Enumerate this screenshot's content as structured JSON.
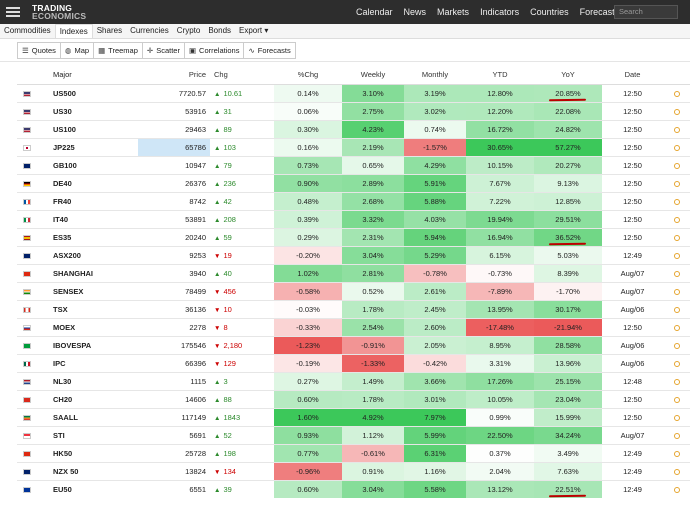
{
  "nav": {
    "logo_line1": "TRADING",
    "logo_line2": "ECONOMICS",
    "items": [
      "Calendar",
      "News",
      "Markets",
      "Indicators",
      "Countries",
      "Forecasts"
    ],
    "search_placeholder": "Search"
  },
  "subnav": {
    "items": [
      "Commodities",
      "Indexes",
      "Shares",
      "Currencies",
      "Crypto",
      "Bonds",
      "Export ▾"
    ],
    "active": "Indexes"
  },
  "toolbar": {
    "buttons": [
      {
        "label": "Quotes",
        "icon": "list-icon"
      },
      {
        "label": "Map",
        "icon": "globe-icon"
      },
      {
        "label": "Treemap",
        "icon": "grid-icon"
      },
      {
        "label": "Scatter",
        "icon": "crosshair-icon"
      },
      {
        "label": "Correlations",
        "icon": "table-icon"
      },
      {
        "label": "Forecasts",
        "icon": "trend-icon"
      }
    ]
  },
  "table": {
    "headers": [
      "Major",
      "Price",
      "Chg",
      "%Chg",
      "Weekly",
      "Monthly",
      "YTD",
      "YoY",
      "Date"
    ],
    "rows": [
      {
        "flag": "us",
        "name": "US500",
        "price": "7720.57",
        "dir": "up",
        "chg": "10.61",
        "pct": "0.14%",
        "wk": "3.10%",
        "mo": "3.19%",
        "ytd": "12.80%",
        "yoy": "20.85%",
        "date": "12:50",
        "yoy_mark": true
      },
      {
        "flag": "us",
        "name": "US30",
        "price": "53916",
        "dir": "up",
        "chg": "31",
        "pct": "0.06%",
        "wk": "2.75%",
        "mo": "3.02%",
        "ytd": "12.20%",
        "yoy": "22.08%",
        "date": "12:50"
      },
      {
        "flag": "us",
        "name": "US100",
        "price": "29463",
        "dir": "up",
        "chg": "89",
        "pct": "0.30%",
        "wk": "4.23%",
        "mo": "0.74%",
        "ytd": "16.72%",
        "yoy": "24.82%",
        "date": "12:50"
      },
      {
        "flag": "jp",
        "name": "JP225",
        "price": "65786",
        "dir": "up",
        "chg": "103",
        "pct": "0.16%",
        "wk": "2.19%",
        "mo": "-1.57%",
        "ytd": "30.65%",
        "yoy": "57.27%",
        "date": "12:50",
        "price_hl": true
      },
      {
        "flag": "gb",
        "name": "GB100",
        "price": "10947",
        "dir": "up",
        "chg": "79",
        "pct": "0.73%",
        "wk": "0.65%",
        "mo": "4.29%",
        "ytd": "10.15%",
        "yoy": "20.27%",
        "date": "12:50"
      },
      {
        "flag": "de",
        "name": "DE40",
        "price": "26376",
        "dir": "up",
        "chg": "236",
        "pct": "0.90%",
        "wk": "2.89%",
        "mo": "5.91%",
        "ytd": "7.67%",
        "yoy": "9.13%",
        "date": "12:50"
      },
      {
        "flag": "fr",
        "name": "FR40",
        "price": "8742",
        "dir": "up",
        "chg": "42",
        "pct": "0.48%",
        "wk": "2.68%",
        "mo": "5.88%",
        "ytd": "7.22%",
        "yoy": "12.85%",
        "date": "12:50"
      },
      {
        "flag": "it",
        "name": "IT40",
        "price": "53891",
        "dir": "up",
        "chg": "208",
        "pct": "0.39%",
        "wk": "3.32%",
        "mo": "4.03%",
        "ytd": "19.94%",
        "yoy": "29.51%",
        "date": "12:50"
      },
      {
        "flag": "es",
        "name": "ES35",
        "price": "20240",
        "dir": "up",
        "chg": "59",
        "pct": "0.29%",
        "wk": "2.31%",
        "mo": "5.94%",
        "ytd": "16.94%",
        "yoy": "36.52%",
        "date": "12:50",
        "yoy_mark": true
      },
      {
        "flag": "au",
        "name": "ASX200",
        "price": "9253",
        "dir": "down",
        "chg": "19",
        "pct": "-0.20%",
        "wk": "3.04%",
        "mo": "5.29%",
        "ytd": "6.15%",
        "yoy": "5.03%",
        "date": "12:49"
      },
      {
        "flag": "cn",
        "name": "SHANGHAI",
        "price": "3940",
        "dir": "up",
        "chg": "40",
        "pct": "1.02%",
        "wk": "2.81%",
        "mo": "-0.78%",
        "ytd": "-0.73%",
        "yoy": "8.39%",
        "date": "Aug/07"
      },
      {
        "flag": "in",
        "name": "SENSEX",
        "price": "78499",
        "dir": "down",
        "chg": "456",
        "pct": "-0.58%",
        "wk": "0.52%",
        "mo": "2.61%",
        "ytd": "-7.89%",
        "yoy": "-1.70%",
        "date": "Aug/07"
      },
      {
        "flag": "ca",
        "name": "TSX",
        "price": "36136",
        "dir": "down",
        "chg": "10",
        "pct": "-0.03%",
        "wk": "1.78%",
        "mo": "2.45%",
        "ytd": "13.95%",
        "yoy": "30.17%",
        "date": "Aug/06"
      },
      {
        "flag": "ru",
        "name": "MOEX",
        "price": "2278",
        "dir": "down",
        "chg": "8",
        "pct": "-0.33%",
        "wk": "2.54%",
        "mo": "2.60%",
        "ytd": "-17.48%",
        "yoy": "-21.94%",
        "date": "12:50"
      },
      {
        "flag": "br",
        "name": "IBOVESPA",
        "price": "175546",
        "dir": "down",
        "chg": "2,180",
        "pct": "-1.23%",
        "wk": "-0.91%",
        "mo": "2.05%",
        "ytd": "8.95%",
        "yoy": "28.58%",
        "date": "Aug/06"
      },
      {
        "flag": "mx",
        "name": "IPC",
        "price": "66396",
        "dir": "down",
        "chg": "129",
        "pct": "-0.19%",
        "wk": "-1.33%",
        "mo": "-0.42%",
        "ytd": "3.31%",
        "yoy": "13.96%",
        "date": "Aug/06"
      },
      {
        "flag": "nl",
        "name": "NL30",
        "price": "1115",
        "dir": "up",
        "chg": "3",
        "pct": "0.27%",
        "wk": "1.49%",
        "mo": "3.66%",
        "ytd": "17.26%",
        "yoy": "25.15%",
        "date": "12:48"
      },
      {
        "flag": "ch",
        "name": "CH20",
        "price": "14606",
        "dir": "up",
        "chg": "88",
        "pct": "0.60%",
        "wk": "1.78%",
        "mo": "3.01%",
        "ytd": "10.05%",
        "yoy": "23.04%",
        "date": "12:50"
      },
      {
        "flag": "za",
        "name": "SAALL",
        "price": "117149",
        "dir": "up",
        "chg": "1843",
        "pct": "1.60%",
        "wk": "4.92%",
        "mo": "7.97%",
        "ytd": "0.99%",
        "yoy": "15.99%",
        "date": "12:50"
      },
      {
        "flag": "sg",
        "name": "STI",
        "price": "5691",
        "dir": "up",
        "chg": "52",
        "pct": "0.93%",
        "wk": "1.12%",
        "mo": "5.99%",
        "ytd": "22.50%",
        "yoy": "34.24%",
        "date": "Aug/07"
      },
      {
        "flag": "hk",
        "name": "HK50",
        "price": "25728",
        "dir": "up",
        "chg": "198",
        "pct": "0.77%",
        "wk": "-0.61%",
        "mo": "6.31%",
        "ytd": "0.37%",
        "yoy": "3.49%",
        "date": "12:49"
      },
      {
        "flag": "nz",
        "name": "NZX 50",
        "price": "13824",
        "dir": "down",
        "chg": "134",
        "pct": "-0.96%",
        "wk": "0.91%",
        "mo": "1.16%",
        "ytd": "2.04%",
        "yoy": "7.63%",
        "date": "12:49"
      },
      {
        "flag": "eu",
        "name": "EU50",
        "price": "6551",
        "dir": "up",
        "chg": "39",
        "pct": "0.60%",
        "wk": "3.04%",
        "mo": "5.58%",
        "ytd": "13.12%",
        "yoy": "22.51%",
        "date": "12:49",
        "yoy_mark": true
      }
    ]
  },
  "colors": {
    "up": "#2c8a2c",
    "down": "#cc0000",
    "price_highlight": "#cfe6f7",
    "clock": "#e5a52e",
    "nav_bg": "#2d2d2d"
  }
}
